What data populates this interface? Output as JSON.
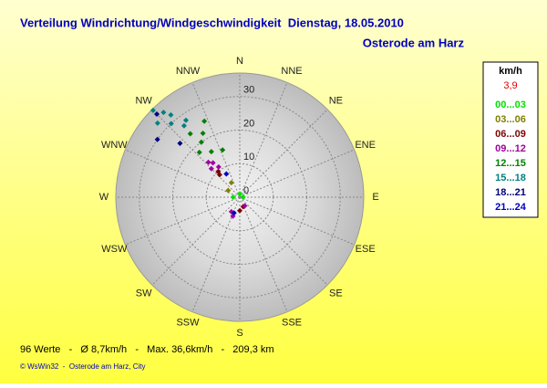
{
  "chart_data": {
    "type": "polar-scatter",
    "title": "Verteilung Windrichtung/Windgeschwindigkeit  Dienstag, 18.05.2010",
    "subtitle": "Osterode am Harz",
    "directions": [
      "N",
      "NNE",
      "NE",
      "ENE",
      "E",
      "ESE",
      "SE",
      "SSE",
      "S",
      "SSW",
      "SW",
      "WSW",
      "W",
      "WNW",
      "NW",
      "NNW"
    ],
    "rlim": [
      0,
      37
    ],
    "rticks": [
      0,
      10,
      20,
      30
    ],
    "legend_title": "km/h",
    "legend_value": "3,9",
    "series": [
      {
        "name": "00...03",
        "color": "#00e000",
        "direction": [
          270,
          0,
          90
        ],
        "speed": [
          2,
          1,
          1
        ]
      },
      {
        "name": "03...06",
        "color": "#808000",
        "direction": [
          330,
          300
        ],
        "speed": [
          5,
          4
        ]
      },
      {
        "name": "06...09",
        "color": "#800000",
        "direction": [
          320,
          318,
          180,
          160
        ],
        "speed": [
          10,
          9,
          4,
          3
        ]
      },
      {
        "name": "09...12",
        "color": "#a000a0",
        "direction": [
          318,
          322,
          315,
          325,
          200,
          210,
          150
        ],
        "speed": [
          14,
          13,
          12,
          11,
          6,
          5,
          3
        ]
      },
      {
        "name": "12...15",
        "color": "#008000",
        "direction": [
          322,
          330,
          325,
          335,
          318,
          328,
          340
        ],
        "speed": [
          24,
          22,
          20,
          25,
          18,
          16,
          15
        ]
      },
      {
        "name": "15...18",
        "color": "#008080",
        "direction": [
          315,
          318,
          320,
          317,
          325,
          312,
          322
        ],
        "speed": [
          36.6,
          34,
          32,
          30,
          28,
          33,
          27
        ]
      },
      {
        "name": "18...21",
        "color": "#000080",
        "direction": [
          305,
          312,
          315
        ],
        "speed": [
          30,
          24,
          35
        ]
      },
      {
        "name": "21...24",
        "color": "#0000c0",
        "direction": [
          330,
          200
        ],
        "speed": [
          8,
          5
        ]
      }
    ],
    "footer": "96 Werte   -   Ø 8,7km/h   -   Max. 36,6km/h   -   209,3 km",
    "credit": "© WsWin32  -  Osterode am Harz, City"
  }
}
